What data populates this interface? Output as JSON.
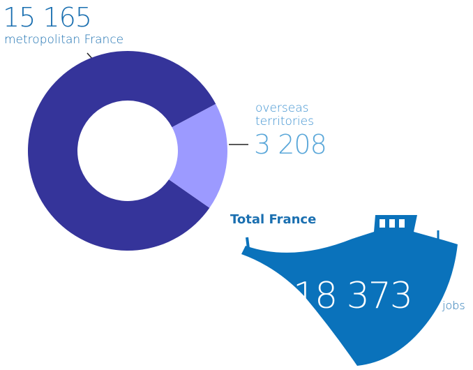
{
  "chart_data": {
    "type": "pie",
    "donut": true,
    "categories": [
      "metropolitan France",
      "overseas territories"
    ],
    "values": [
      15165,
      3208
    ],
    "value_labels": [
      "15 165",
      "3 208"
    ],
    "colors": [
      "#35349a",
      "#9c9aff"
    ],
    "total": {
      "title": "Total France",
      "value_label": "18 373",
      "unit": "jobs"
    }
  }
}
